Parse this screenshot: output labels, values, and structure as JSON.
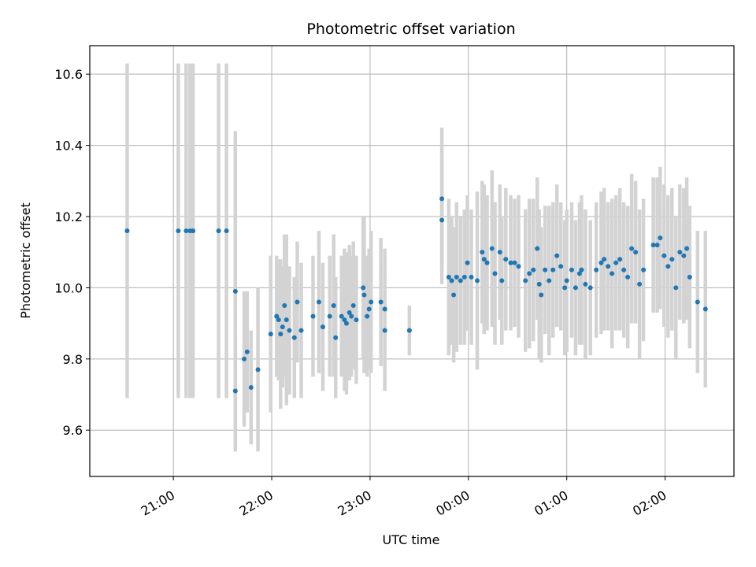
{
  "chart_data": {
    "type": "scatter",
    "title": "Photometric offset variation",
    "xlabel": "UTC time",
    "ylabel": "Photometric offset",
    "x_axis": "time (hours relative to 00:00 UTC)",
    "xlim": [
      -3.85,
      2.7
    ],
    "ylim": [
      9.47,
      10.68
    ],
    "x_ticks": [
      {
        "value": -3,
        "label": "21:00"
      },
      {
        "value": -2,
        "label": "22:00"
      },
      {
        "value": -1,
        "label": "23:00"
      },
      {
        "value": 0,
        "label": "00:00"
      },
      {
        "value": 1,
        "label": "01:00"
      },
      {
        "value": 2,
        "label": "02:00"
      }
    ],
    "y_ticks": [
      {
        "value": 9.6,
        "label": "9.6"
      },
      {
        "value": 9.8,
        "label": "9.8"
      },
      {
        "value": 10.0,
        "label": "10.0"
      },
      {
        "value": 10.2,
        "label": "10.2"
      },
      {
        "value": 10.4,
        "label": "10.4"
      },
      {
        "value": 10.6,
        "label": "10.6"
      }
    ],
    "grid": true,
    "colors": {
      "points": "#1f77b4",
      "errorbars": "#d3d3d3",
      "grid": "#b0b0b0"
    },
    "series": [
      {
        "x": [
          -3.47,
          -2.95,
          -2.87,
          -2.83,
          -2.8,
          -2.54,
          -2.46,
          -2.37,
          -2.37,
          -2.28,
          -2.25,
          -2.21,
          -2.14,
          -2.01,
          -1.95,
          -1.93,
          -1.91,
          -1.89,
          -1.87,
          -1.85,
          -1.82,
          -1.77,
          -1.74,
          -1.7,
          -1.58,
          -1.52,
          -1.48,
          -1.41,
          -1.37,
          -1.35,
          -1.29,
          -1.26,
          -1.24,
          -1.21,
          -1.19,
          -1.17,
          -1.14,
          -1.07,
          -1.06,
          -1.03,
          -1.01,
          -0.99,
          -0.89,
          -0.85,
          -0.85,
          -0.6,
          -0.27,
          -0.27,
          -0.2,
          -0.17,
          -0.15,
          -0.12,
          -0.08,
          -0.04,
          -0.01,
          0.03,
          0.09,
          0.14,
          0.16,
          0.19,
          0.24,
          0.27,
          0.32,
          0.34,
          0.38,
          0.43,
          0.47,
          0.51,
          0.58,
          0.62,
          0.66,
          0.7,
          0.72,
          0.74,
          0.78,
          0.82,
          0.86,
          0.9,
          0.94,
          0.98,
          1.0,
          1.05,
          1.09,
          1.13,
          1.15,
          1.19,
          1.24,
          1.3,
          1.35,
          1.38,
          1.42,
          1.46,
          1.5,
          1.54,
          1.58,
          1.62,
          1.66,
          1.7,
          1.74,
          1.78,
          1.88,
          1.92,
          1.95,
          1.99,
          2.03,
          2.07,
          2.11,
          2.15,
          2.19,
          2.22,
          2.25,
          2.33,
          2.41
        ],
        "y": [
          10.16,
          10.16,
          10.16,
          10.16,
          10.16,
          10.16,
          10.16,
          9.99,
          9.71,
          9.8,
          9.82,
          9.72,
          9.77,
          9.87,
          9.92,
          9.91,
          9.87,
          9.89,
          9.95,
          9.91,
          9.88,
          9.86,
          9.96,
          9.88,
          9.92,
          9.96,
          9.89,
          9.92,
          9.95,
          9.86,
          9.92,
          9.91,
          9.9,
          9.93,
          9.92,
          9.95,
          9.91,
          10.0,
          9.98,
          9.92,
          9.94,
          9.96,
          9.96,
          9.94,
          9.88,
          9.88,
          10.25,
          10.19,
          10.03,
          10.02,
          9.98,
          10.03,
          10.02,
          10.03,
          10.07,
          10.03,
          10.02,
          10.1,
          10.08,
          10.07,
          10.11,
          10.04,
          10.1,
          10.02,
          10.08,
          10.07,
          10.07,
          10.06,
          10.02,
          10.04,
          10.05,
          10.11,
          10.01,
          9.98,
          10.05,
          10.02,
          10.05,
          10.09,
          10.06,
          10.0,
          10.02,
          10.05,
          10.0,
          10.04,
          10.05,
          10.01,
          10.0,
          10.05,
          10.07,
          10.08,
          10.06,
          10.04,
          10.07,
          10.08,
          10.05,
          10.03,
          10.11,
          10.1,
          10.01,
          10.05,
          10.12,
          10.12,
          10.14,
          10.09,
          10.06,
          10.08,
          10.0,
          10.1,
          10.09,
          10.11,
          10.03,
          9.96,
          9.94
        ],
        "yerr": [
          0.47,
          0.47,
          0.47,
          0.47,
          0.47,
          0.47,
          0.47,
          0.45,
          0.16,
          0.19,
          0.17,
          0.16,
          0.23,
          0.22,
          0.17,
          0.17,
          0.21,
          0.17,
          0.2,
          0.24,
          0.18,
          0.17,
          0.17,
          0.19,
          0.17,
          0.2,
          0.18,
          0.17,
          0.2,
          0.17,
          0.17,
          0.2,
          0.2,
          0.19,
          0.17,
          0.18,
          0.18,
          0.2,
          0.22,
          0.17,
          0.17,
          0.2,
          0.18,
          0.17,
          0.17,
          0.07,
          0.2,
          0.18,
          0.22,
          0.18,
          0.19,
          0.21,
          0.18,
          0.19,
          0.19,
          0.19,
          0.25,
          0.2,
          0.21,
          0.19,
          0.22,
          0.2,
          0.19,
          0.18,
          0.2,
          0.19,
          0.18,
          0.2,
          0.2,
          0.21,
          0.2,
          0.2,
          0.21,
          0.19,
          0.18,
          0.21,
          0.19,
          0.2,
          0.18,
          0.19,
          0.2,
          0.19,
          0.19,
          0.2,
          0.21,
          0.21,
          0.19,
          0.19,
          0.2,
          0.2,
          0.18,
          0.21,
          0.19,
          0.2,
          0.19,
          0.2,
          0.21,
          0.2,
          0.21,
          0.2,
          0.19,
          0.19,
          0.2,
          0.2,
          0.2,
          0.2,
          0.2,
          0.19,
          0.19,
          0.2,
          0.2,
          0.2,
          0.22
        ]
      }
    ]
  }
}
